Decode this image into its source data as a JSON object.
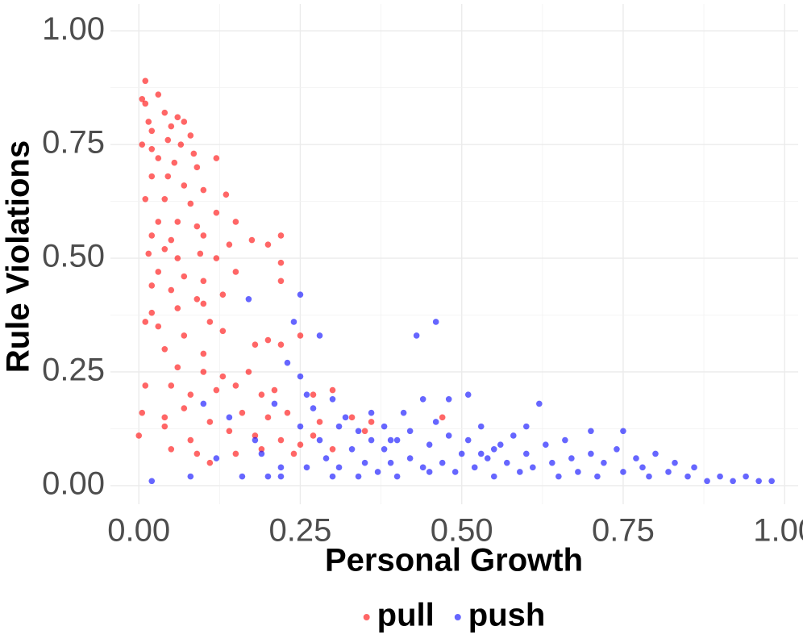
{
  "chart_data": {
    "type": "scatter",
    "x_label": "Personal Growth",
    "y_label": "Rule Violations",
    "xlim": [
      -0.044,
      1.021
    ],
    "ylim": [
      -0.041,
      1.059
    ],
    "xticks": [
      {
        "value": 0,
        "label": "0.00"
      },
      {
        "value": 0.25,
        "label": "0.25"
      },
      {
        "value": 0.5,
        "label": "0.50"
      },
      {
        "value": 0.75,
        "label": "0.75"
      },
      {
        "value": 1,
        "label": "1.00"
      }
    ],
    "yticks": [
      {
        "value": 0,
        "label": "0.00"
      },
      {
        "value": 0.25,
        "label": "0.25"
      },
      {
        "value": 0.5,
        "label": "0.50"
      },
      {
        "value": 0.75,
        "label": "0.75"
      },
      {
        "value": 1,
        "label": "1.00"
      }
    ],
    "grid": true,
    "legend_position": "bottom",
    "series": [
      {
        "name": "pull",
        "color": "#ff0000",
        "x": [
          0.01,
          0.005,
          0.01,
          0.03,
          0.04,
          0.015,
          0.02,
          0.05,
          0.06,
          0.07,
          0.08,
          0.005,
          0.02,
          0.045,
          0.065,
          0.085,
          0.03,
          0.055,
          0.09,
          0.12,
          0.02,
          0.045,
          0.07,
          0.1,
          0.135,
          0.01,
          0.04,
          0.08,
          0.12,
          0.15,
          0.03,
          0.06,
          0.09,
          0.02,
          0.05,
          0.1,
          0.14,
          0.175,
          0.2,
          0.22,
          0.015,
          0.04,
          0.06,
          0.095,
          0.12,
          0.03,
          0.07,
          0.1,
          0.15,
          0.22,
          0.02,
          0.05,
          0.09,
          0.13,
          0.22,
          0.02,
          0.06,
          0.1,
          0.11,
          0.01,
          0.03,
          0.07,
          0.13,
          0.2,
          0.25,
          0.04,
          0.1,
          0.18,
          0.22,
          0.06,
          0.1,
          0.13,
          0.17,
          0.01,
          0.05,
          0.08,
          0.12,
          0.15,
          0.19,
          0.21,
          0.27,
          0.3,
          0.005,
          0.04,
          0.07,
          0.11,
          0.16,
          0.2,
          0.23,
          0.28,
          0.33,
          0.36,
          0.47,
          0.0,
          0.04,
          0.08,
          0.14,
          0.18,
          0.22,
          0.27,
          0.35,
          0.05,
          0.09,
          0.15,
          0.19,
          0.25,
          0.3,
          0.11,
          0.24
        ],
        "y": [
          0.89,
          0.85,
          0.84,
          0.86,
          0.82,
          0.8,
          0.78,
          0.79,
          0.81,
          0.8,
          0.77,
          0.75,
          0.74,
          0.76,
          0.75,
          0.73,
          0.72,
          0.71,
          0.7,
          0.72,
          0.68,
          0.68,
          0.66,
          0.65,
          0.64,
          0.63,
          0.63,
          0.62,
          0.6,
          0.58,
          0.58,
          0.58,
          0.57,
          0.55,
          0.54,
          0.55,
          0.53,
          0.54,
          0.53,
          0.55,
          0.51,
          0.52,
          0.5,
          0.51,
          0.5,
          0.47,
          0.46,
          0.45,
          0.47,
          0.49,
          0.44,
          0.43,
          0.41,
          0.42,
          0.45,
          0.38,
          0.39,
          0.4,
          0.36,
          0.36,
          0.35,
          0.33,
          0.34,
          0.32,
          0.33,
          0.3,
          0.29,
          0.31,
          0.31,
          0.26,
          0.25,
          0.24,
          0.25,
          0.22,
          0.22,
          0.2,
          0.21,
          0.22,
          0.2,
          0.21,
          0.2,
          0.21,
          0.16,
          0.15,
          0.17,
          0.14,
          0.16,
          0.15,
          0.16,
          0.14,
          0.15,
          0.14,
          0.15,
          0.11,
          0.13,
          0.1,
          0.12,
          0.11,
          0.1,
          0.11,
          0.12,
          0.08,
          0.07,
          0.07,
          0.08,
          0.09,
          0.08,
          0.05,
          0.07
        ]
      },
      {
        "name": "push",
        "color": "#0000ff",
        "x": [
          0.02,
          0.08,
          0.12,
          0.1,
          0.14,
          0.18,
          0.16,
          0.19,
          0.17,
          0.2,
          0.21,
          0.22,
          0.22,
          0.23,
          0.24,
          0.25,
          0.25,
          0.26,
          0.26,
          0.25,
          0.28,
          0.27,
          0.28,
          0.29,
          0.3,
          0.3,
          0.31,
          0.31,
          0.32,
          0.33,
          0.34,
          0.34,
          0.35,
          0.36,
          0.36,
          0.37,
          0.38,
          0.38,
          0.39,
          0.4,
          0.4,
          0.41,
          0.42,
          0.42,
          0.43,
          0.44,
          0.44,
          0.45,
          0.46,
          0.46,
          0.47,
          0.48,
          0.48,
          0.49,
          0.5,
          0.51,
          0.51,
          0.52,
          0.53,
          0.54,
          0.55,
          0.56,
          0.57,
          0.58,
          0.59,
          0.6,
          0.6,
          0.61,
          0.62,
          0.63,
          0.64,
          0.65,
          0.66,
          0.67,
          0.68,
          0.7,
          0.7,
          0.71,
          0.72,
          0.74,
          0.75,
          0.75,
          0.77,
          0.78,
          0.79,
          0.8,
          0.82,
          0.83,
          0.85,
          0.86,
          0.88,
          0.9,
          0.92,
          0.94,
          0.96,
          0.98,
          0.55,
          0.45,
          0.39,
          0.53
        ],
        "y": [
          0.01,
          0.02,
          0.06,
          0.18,
          0.15,
          0.1,
          0.02,
          0.07,
          0.41,
          0.02,
          0.18,
          0.04,
          0.02,
          0.27,
          0.36,
          0.24,
          0.13,
          0.04,
          0.2,
          0.42,
          0.33,
          0.17,
          0.1,
          0.06,
          0.02,
          0.19,
          0.13,
          0.04,
          0.15,
          0.08,
          0.12,
          0.02,
          0.05,
          0.16,
          0.1,
          0.03,
          0.08,
          0.13,
          0.05,
          0.1,
          0.02,
          0.16,
          0.06,
          0.12,
          0.33,
          0.19,
          0.04,
          0.09,
          0.14,
          0.36,
          0.05,
          0.19,
          0.11,
          0.03,
          0.07,
          0.2,
          0.1,
          0.04,
          0.13,
          0.06,
          0.02,
          0.09,
          0.05,
          0.11,
          0.03,
          0.07,
          0.13,
          0.04,
          0.18,
          0.09,
          0.05,
          0.02,
          0.1,
          0.06,
          0.03,
          0.07,
          0.12,
          0.02,
          0.05,
          0.08,
          0.12,
          0.03,
          0.06,
          0.04,
          0.02,
          0.07,
          0.03,
          0.05,
          0.02,
          0.04,
          0.01,
          0.02,
          0.01,
          0.02,
          0.01,
          0.01,
          0.08,
          0.03,
          0.1,
          0.07
        ]
      }
    ]
  }
}
